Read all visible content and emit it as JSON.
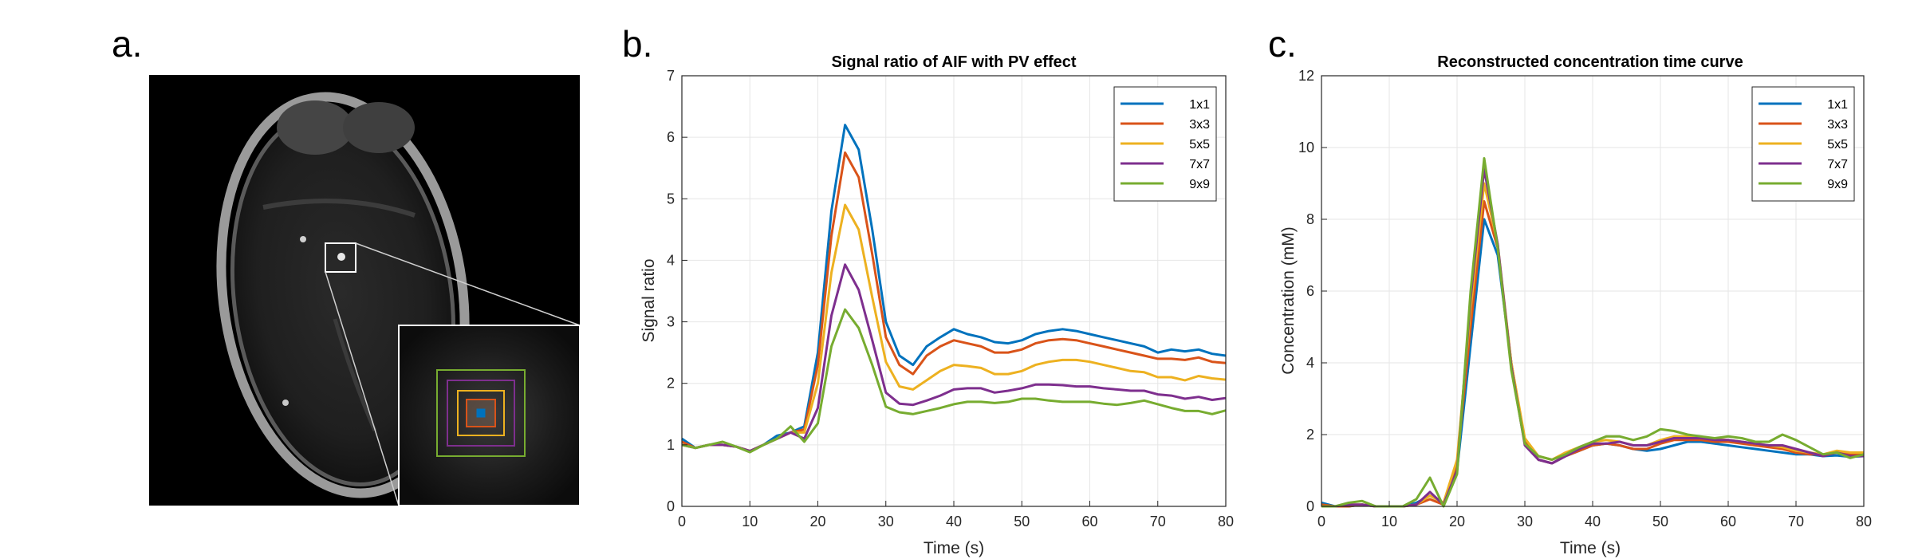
{
  "panels": {
    "a": {
      "letter": "a."
    },
    "b": {
      "letter": "b."
    },
    "c": {
      "letter": "c."
    }
  },
  "roi_box_colors": [
    "#0072BD",
    "#D95319",
    "#EDB120",
    "#7E2F8E",
    "#77AC30"
  ],
  "chart_data": [
    {
      "type": "line",
      "title": "Signal ratio of AIF with PV effect",
      "xlabel": "Time (s)",
      "ylabel": "Signal ratio",
      "xlim": [
        0,
        80
      ],
      "ylim": [
        0,
        7
      ],
      "xticks": [
        0,
        10,
        20,
        30,
        40,
        50,
        60,
        70,
        80
      ],
      "yticks": [
        0,
        1,
        2,
        3,
        4,
        5,
        6,
        7
      ],
      "grid": true,
      "legend_position": "top-right",
      "x": [
        0,
        2,
        4,
        6,
        8,
        10,
        12,
        14,
        16,
        18,
        20,
        22,
        24,
        26,
        28,
        30,
        32,
        34,
        36,
        38,
        40,
        42,
        44,
        46,
        48,
        50,
        52,
        54,
        56,
        58,
        60,
        62,
        64,
        66,
        68,
        70,
        72,
        74,
        76,
        78,
        80
      ],
      "series": [
        {
          "name": "1x1",
          "color": "#0072BD",
          "values": [
            1.1,
            0.95,
            1.0,
            1.0,
            0.97,
            0.9,
            1.0,
            1.15,
            1.2,
            1.3,
            2.5,
            4.8,
            6.2,
            5.8,
            4.5,
            3.0,
            2.45,
            2.3,
            2.6,
            2.75,
            2.88,
            2.8,
            2.75,
            2.67,
            2.65,
            2.7,
            2.8,
            2.85,
            2.88,
            2.85,
            2.8,
            2.75,
            2.7,
            2.65,
            2.6,
            2.5,
            2.55,
            2.52,
            2.55,
            2.48,
            2.45
          ]
        },
        {
          "name": "3x3",
          "color": "#D95319",
          "values": [
            1.05,
            0.95,
            1.0,
            1.0,
            0.97,
            0.9,
            1.0,
            1.1,
            1.2,
            1.25,
            2.3,
            4.4,
            5.75,
            5.35,
            4.1,
            2.75,
            2.3,
            2.15,
            2.45,
            2.6,
            2.7,
            2.65,
            2.6,
            2.5,
            2.5,
            2.55,
            2.65,
            2.7,
            2.72,
            2.7,
            2.65,
            2.6,
            2.55,
            2.5,
            2.45,
            2.4,
            2.4,
            2.38,
            2.42,
            2.35,
            2.33
          ]
        },
        {
          "name": "5x5",
          "color": "#EDB120",
          "values": [
            1.0,
            0.95,
            1.0,
            1.0,
            0.97,
            0.9,
            1.0,
            1.1,
            1.2,
            1.2,
            2.0,
            3.8,
            4.9,
            4.5,
            3.4,
            2.35,
            1.95,
            1.9,
            2.05,
            2.2,
            2.3,
            2.28,
            2.25,
            2.15,
            2.15,
            2.2,
            2.3,
            2.35,
            2.38,
            2.38,
            2.35,
            2.3,
            2.25,
            2.2,
            2.18,
            2.1,
            2.1,
            2.05,
            2.12,
            2.08,
            2.06
          ]
        },
        {
          "name": "7x7",
          "color": "#7E2F8E",
          "values": [
            1.0,
            0.95,
            1.0,
            1.0,
            0.97,
            0.9,
            1.0,
            1.1,
            1.2,
            1.1,
            1.6,
            3.1,
            3.93,
            3.52,
            2.7,
            1.85,
            1.67,
            1.65,
            1.72,
            1.8,
            1.9,
            1.92,
            1.92,
            1.85,
            1.88,
            1.92,
            1.98,
            1.98,
            1.97,
            1.95,
            1.95,
            1.92,
            1.9,
            1.88,
            1.88,
            1.82,
            1.8,
            1.75,
            1.78,
            1.73,
            1.76
          ]
        },
        {
          "name": "9x9",
          "color": "#77AC30",
          "values": [
            1.0,
            0.95,
            1.0,
            1.05,
            0.97,
            0.88,
            1.0,
            1.1,
            1.3,
            1.05,
            1.35,
            2.6,
            3.2,
            2.9,
            2.3,
            1.62,
            1.53,
            1.5,
            1.55,
            1.6,
            1.66,
            1.7,
            1.7,
            1.68,
            1.7,
            1.75,
            1.75,
            1.72,
            1.7,
            1.7,
            1.7,
            1.67,
            1.65,
            1.68,
            1.72,
            1.66,
            1.6,
            1.55,
            1.55,
            1.5,
            1.56
          ]
        }
      ]
    },
    {
      "type": "line",
      "title": "Reconstructed concentration time curve",
      "xlabel": "Time (s)",
      "ylabel": "Concentration (mM)",
      "xlim": [
        0,
        80
      ],
      "ylim": [
        0,
        12
      ],
      "xticks": [
        0,
        10,
        20,
        30,
        40,
        50,
        60,
        70,
        80
      ],
      "yticks": [
        0,
        2,
        4,
        6,
        8,
        10,
        12
      ],
      "grid": true,
      "legend_position": "top-right",
      "x": [
        0,
        2,
        4,
        6,
        8,
        10,
        12,
        14,
        16,
        18,
        20,
        22,
        24,
        26,
        28,
        30,
        32,
        34,
        36,
        38,
        40,
        42,
        44,
        46,
        48,
        50,
        52,
        54,
        56,
        58,
        60,
        62,
        64,
        66,
        68,
        70,
        72,
        74,
        76,
        78,
        80
      ],
      "series": [
        {
          "name": "1x1",
          "color": "#0072BD",
          "values": [
            0.1,
            0.0,
            0.0,
            0.05,
            0.0,
            0.0,
            0.0,
            0.1,
            0.3,
            0.1,
            1.0,
            4.5,
            8.0,
            7.0,
            4.0,
            1.8,
            1.3,
            1.2,
            1.4,
            1.55,
            1.7,
            1.75,
            1.7,
            1.6,
            1.55,
            1.6,
            1.7,
            1.8,
            1.8,
            1.75,
            1.7,
            1.65,
            1.6,
            1.55,
            1.5,
            1.45,
            1.45,
            1.4,
            1.42,
            1.38,
            1.4
          ]
        },
        {
          "name": "3x3",
          "color": "#D95319",
          "values": [
            0.05,
            0.0,
            0.0,
            0.05,
            0.0,
            0.0,
            0.0,
            0.05,
            0.2,
            0.05,
            1.2,
            5.0,
            8.5,
            7.2,
            4.0,
            1.8,
            1.3,
            1.2,
            1.4,
            1.55,
            1.7,
            1.75,
            1.7,
            1.6,
            1.6,
            1.75,
            1.85,
            1.85,
            1.85,
            1.8,
            1.8,
            1.75,
            1.7,
            1.65,
            1.6,
            1.5,
            1.45,
            1.45,
            1.5,
            1.45,
            1.45
          ]
        },
        {
          "name": "5x5",
          "color": "#EDB120",
          "values": [
            0.0,
            0.0,
            0.05,
            0.05,
            0.0,
            0.0,
            0.0,
            0.05,
            0.3,
            0.1,
            1.3,
            5.5,
            9.0,
            7.3,
            4.0,
            1.9,
            1.4,
            1.3,
            1.5,
            1.65,
            1.8,
            1.85,
            1.8,
            1.7,
            1.7,
            1.85,
            1.95,
            1.95,
            1.92,
            1.88,
            1.85,
            1.8,
            1.75,
            1.7,
            1.65,
            1.55,
            1.5,
            1.45,
            1.55,
            1.5,
            1.5
          ]
        },
        {
          "name": "7x7",
          "color": "#7E2F8E",
          "values": [
            0.0,
            0.0,
            0.05,
            0.05,
            0.0,
            0.0,
            0.0,
            0.05,
            0.4,
            0.05,
            1.0,
            5.8,
            9.4,
            7.3,
            3.9,
            1.7,
            1.3,
            1.2,
            1.4,
            1.6,
            1.75,
            1.75,
            1.8,
            1.7,
            1.7,
            1.8,
            1.9,
            1.9,
            1.9,
            1.85,
            1.85,
            1.8,
            1.75,
            1.7,
            1.7,
            1.6,
            1.5,
            1.4,
            1.5,
            1.4,
            1.4
          ]
        },
        {
          "name": "9x9",
          "color": "#77AC30",
          "values": [
            0.0,
            0.0,
            0.1,
            0.15,
            0.0,
            0.0,
            0.0,
            0.2,
            0.8,
            0.0,
            0.9,
            6.0,
            9.7,
            7.2,
            3.8,
            1.75,
            1.4,
            1.3,
            1.45,
            1.65,
            1.8,
            1.95,
            1.95,
            1.85,
            1.95,
            2.15,
            2.1,
            2.0,
            1.95,
            1.9,
            1.95,
            1.9,
            1.8,
            1.8,
            2.0,
            1.85,
            1.65,
            1.45,
            1.5,
            1.35,
            1.45
          ]
        }
      ]
    }
  ]
}
